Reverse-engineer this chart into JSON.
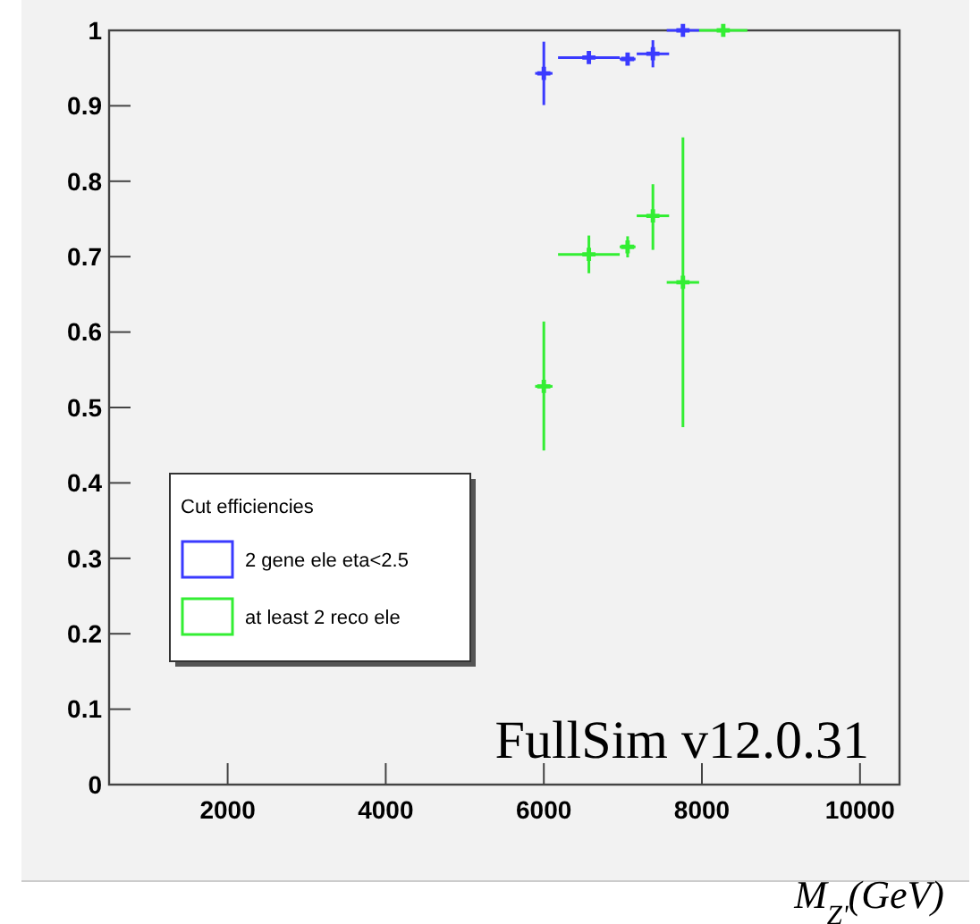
{
  "chart_data": {
    "type": "scatter",
    "xlabel": "M$_{Z'}$(GeV)",
    "legend_title": "Cut efficiencies",
    "legend": "bottom left",
    "marker": "cross",
    "grid": false,
    "annotations": [
      "FullSim v12.0.31"
    ],
    "xlim": [
      500,
      10500
    ],
    "xticks": [
      2000,
      4000,
      6000,
      8000,
      10000
    ],
    "ylim": [
      0,
      1
    ],
    "yticks": [
      0,
      0.1,
      0.2,
      0.3,
      0.4,
      0.5,
      0.6,
      0.7,
      0.8,
      0.9,
      1
    ],
    "series": [
      {
        "name": "2 gene ele eta<2.5",
        "color": "#3a3aff",
        "x": [
          6000,
          6570,
          7060,
          7380,
          7760
        ],
        "values": [
          0.943,
          0.964,
          0.962,
          0.969,
          1
        ],
        "errors": [
          0.042,
          0.006,
          0.004,
          0.018,
          null
        ],
        "xerrors": [
          110,
          390,
          100,
          205,
          205
        ]
      },
      {
        "name": "at least 2 reco ele",
        "color": "#33ee33",
        "x": [
          6000,
          6570,
          7060,
          7380,
          7760,
          8270
        ],
        "values": [
          0.528,
          0.703,
          0.713,
          0.754,
          0.666,
          1
        ],
        "errors": [
          [
            0.443,
            0.614
          ],
          0.025,
          0.014,
          [
            0.709,
            0.796
          ],
          [
            0.474,
            0.858
          ],
          null
        ],
        "xerrors": [
          110,
          390,
          100,
          205,
          205,
          305
        ]
      }
    ]
  }
}
